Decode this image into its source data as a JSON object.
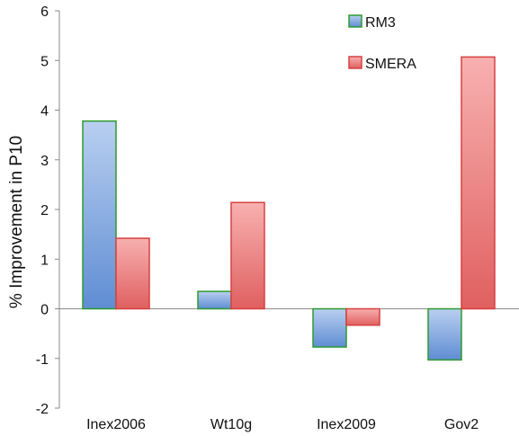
{
  "chart_data": {
    "type": "bar",
    "categories": [
      "Inex2006",
      "Wt10g",
      "Inex2009",
      "Gov2"
    ],
    "series": [
      {
        "name": "RM3",
        "values": [
          3.78,
          0.35,
          -0.77,
          -1.03
        ],
        "fill": "#7fa6dc",
        "stroke": "#2e9a2e"
      },
      {
        "name": "SMERA",
        "values": [
          1.42,
          2.14,
          -0.33,
          5.07
        ],
        "fill": "#f08080",
        "stroke": "#d84040"
      }
    ],
    "title": "",
    "xlabel": "",
    "ylabel": "% Improvement in P10",
    "ylim": [
      -2,
      6
    ],
    "yticks": [
      -2,
      -1,
      0,
      1,
      2,
      3,
      4,
      5,
      6
    ],
    "legend_position": "top-right",
    "grid": false
  }
}
